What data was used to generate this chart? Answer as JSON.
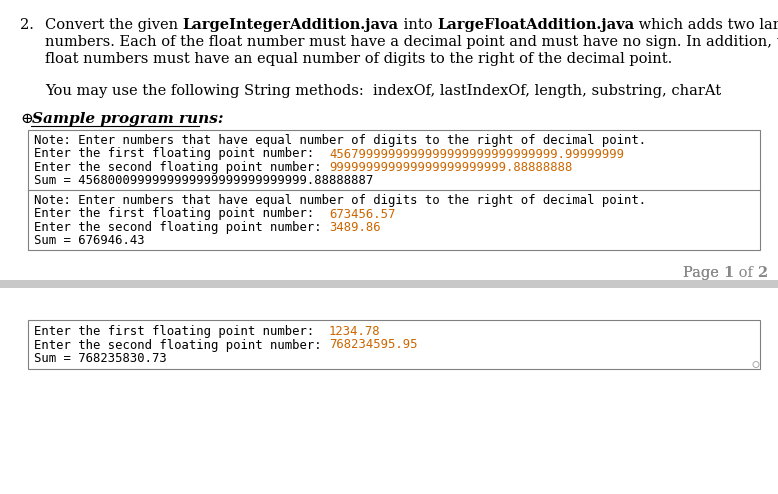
{
  "bg_color": "#ffffff",
  "gray_band_color": "#c8c8c8",
  "orange_color": "#cc6600",
  "black_color": "#000000",
  "body_fontsize": 10.5,
  "mono_fontsize": 8.8,
  "sample_fontsize": 11.0,
  "page_fontsize": 10.5,
  "title_line1_normal1": "Convert the given ",
  "title_line1_bold1": "LargeIntegerAddition.java",
  "title_line1_normal2": " into ",
  "title_line1_bold2": "LargeFloatAddition.java",
  "title_line1_normal3": " which adds two large float",
  "title_line2": "numbers. Each of the float number must have a decimal point and must have no sign. In addition, the two",
  "title_line3": "float numbers must have an equal number of digits to the right of the decimal point.",
  "methods_line": "You may use the following String methods:  indexOf, lastIndexOf, length, substring, charAt",
  "sample_label_prefix": "⊕",
  "sample_label_text": "Sample program runs:",
  "box1_lines": [
    [
      {
        "text": "Note: Enter numbers that have equal number of digits to the right of decimal point.",
        "color": "#000000"
      }
    ],
    [
      {
        "text": "Enter the first floating point number:  ",
        "color": "#000000"
      },
      {
        "text": "4567999999999999999999999999999.99999999",
        "color": "#cc6600"
      }
    ],
    [
      {
        "text": "Enter the second floating point number: ",
        "color": "#000000"
      },
      {
        "text": "999999999999999999999999.88888888",
        "color": "#cc6600"
      }
    ],
    [
      {
        "text": "Sum = 4568000999999999999999999999999.88888887",
        "color": "#000000"
      }
    ]
  ],
  "box2_lines": [
    [
      {
        "text": "Note: Enter numbers that have equal number of digits to the right of decimal point.",
        "color": "#000000"
      }
    ],
    [
      {
        "text": "Enter the first floating point number:  ",
        "color": "#000000"
      },
      {
        "text": "673456.57",
        "color": "#cc6600"
      }
    ],
    [
      {
        "text": "Enter the second floating point number: ",
        "color": "#000000"
      },
      {
        "text": "3489.86",
        "color": "#cc6600"
      }
    ],
    [
      {
        "text": "Sum = 676946.43",
        "color": "#000000"
      }
    ]
  ],
  "box3_lines": [
    [
      {
        "text": "Enter the first floating point number:  ",
        "color": "#000000"
      },
      {
        "text": "1234.78",
        "color": "#cc6600"
      }
    ],
    [
      {
        "text": "Enter the second floating point number: ",
        "color": "#000000"
      },
      {
        "text": "768234595.95",
        "color": "#cc6600"
      }
    ],
    [
      {
        "text": "Sum = 768235830.73",
        "color": "#000000"
      }
    ]
  ],
  "page_label": "Page ",
  "page_num": "1",
  "page_mid": " of ",
  "page_end": "2"
}
